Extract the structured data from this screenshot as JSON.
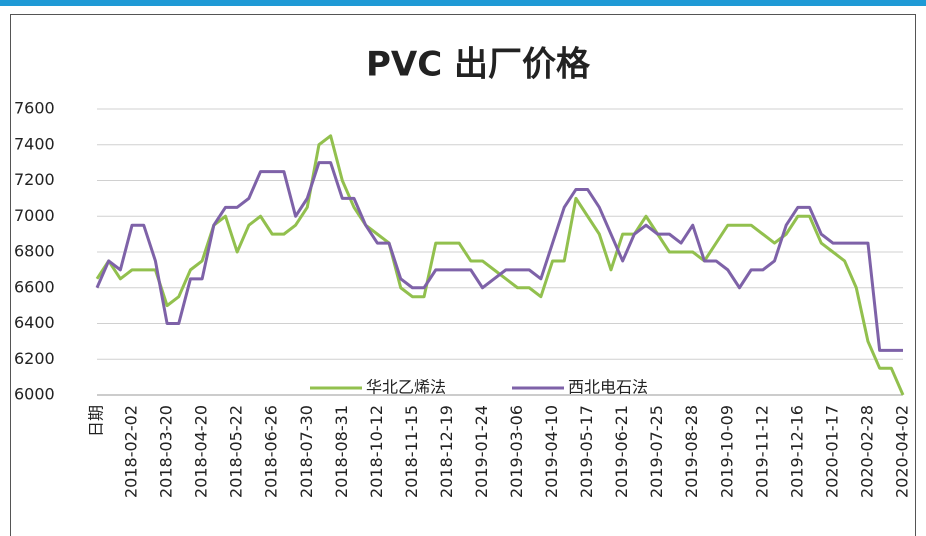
{
  "chart_data": {
    "type": "line",
    "title": "PVC 出厂价格",
    "categories": [
      "日期",
      null,
      null,
      "2018-02-02",
      null,
      null,
      "2018-03-20",
      null,
      null,
      "2018-04-20",
      null,
      null,
      "2018-05-22",
      null,
      null,
      "2018-06-26",
      null,
      null,
      "2018-07-30",
      null,
      null,
      "2018-08-31",
      null,
      null,
      "2018-10-12",
      null,
      null,
      "2018-11-15",
      null,
      null,
      "2018-12-19",
      null,
      null,
      "2019-01-24",
      null,
      null,
      "2019-03-06",
      null,
      null,
      "2019-04-10",
      null,
      null,
      "2019-05-17",
      null,
      null,
      "2019-06-21",
      null,
      null,
      "2019-07-25",
      null,
      null,
      "2019-08-28",
      null,
      null,
      "2019-10-09",
      null,
      null,
      "2019-11-12",
      null,
      null,
      "2019-12-16",
      null,
      null,
      "2020-01-17",
      null,
      null,
      "2020-02-28",
      null,
      null,
      "2020-04-02"
    ],
    "series": [
      {
        "name": "华北乙烯法",
        "color": "#92c04e",
        "values": [
          6650,
          6750,
          6650,
          6700,
          6700,
          6700,
          6500,
          6550,
          6700,
          6750,
          6950,
          7000,
          6800,
          6950,
          7000,
          6900,
          6900,
          6950,
          7050,
          7400,
          7450,
          7200,
          7050,
          6950,
          6900,
          6850,
          6600,
          6550,
          6550,
          6850,
          6850,
          6850,
          6750,
          6750,
          6700,
          6650,
          6600,
          6600,
          6550,
          6750,
          6750,
          7100,
          7000,
          6900,
          6700,
          6900,
          6900,
          7000,
          6900,
          6800,
          6800,
          6800,
          6750,
          6850,
          6950,
          6950,
          6950,
          6900,
          6850,
          6900,
          7000,
          7000,
          6850,
          6800,
          6750,
          6600,
          6300,
          6150,
          6150,
          6000
        ]
      },
      {
        "name": "西北电石法",
        "color": "#7e62a8",
        "values": [
          6600,
          6750,
          6700,
          6950,
          6950,
          6750,
          6400,
          6400,
          6650,
          6650,
          6950,
          7050,
          7050,
          7100,
          7250,
          7250,
          7250,
          7000,
          7100,
          7300,
          7300,
          7100,
          7100,
          6950,
          6850,
          6850,
          6650,
          6600,
          6600,
          6700,
          6700,
          6700,
          6700,
          6600,
          6650,
          6700,
          6700,
          6700,
          6650,
          6850,
          7050,
          7150,
          7150,
          7050,
          6900,
          6750,
          6900,
          6950,
          6900,
          6900,
          6850,
          6950,
          6750,
          6750,
          6700,
          6600,
          6700,
          6700,
          6750,
          6950,
          7050,
          7050,
          6900,
          6850,
          6850,
          6850,
          6850,
          6250,
          6250,
          6250
        ]
      }
    ],
    "ylim": [
      6000,
      7600
    ],
    "yticks": [
      6000,
      6200,
      6400,
      6600,
      6800,
      7000,
      7200,
      7400,
      7600
    ],
    "grid": true,
    "legend": "bottom"
  }
}
